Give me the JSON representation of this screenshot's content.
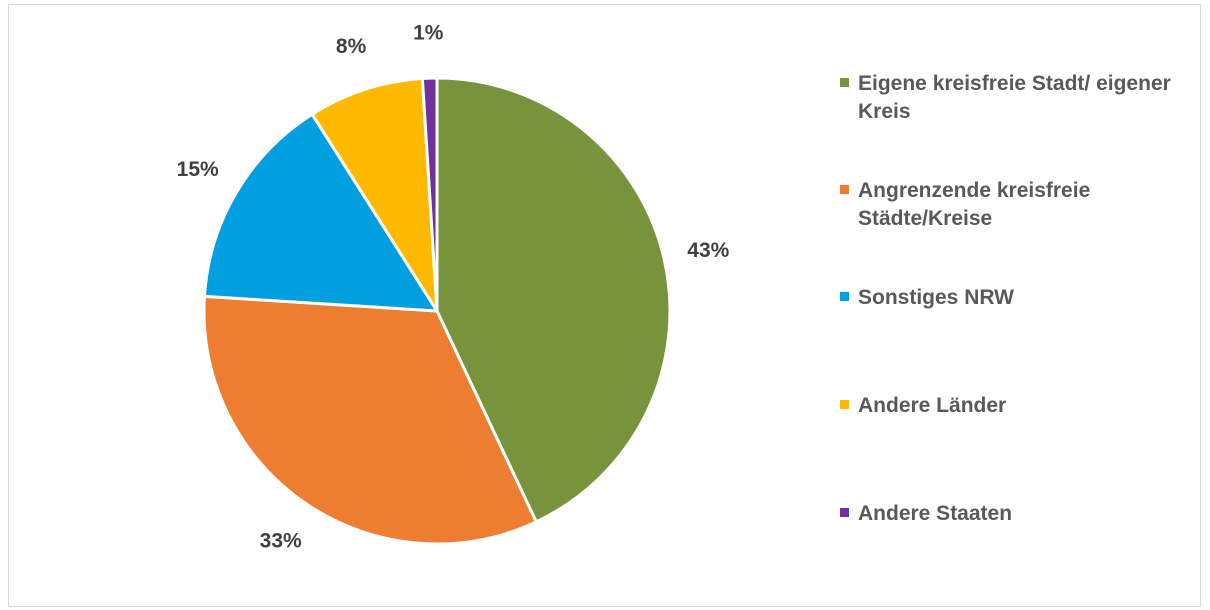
{
  "chart_data": {
    "type": "pie",
    "title": "",
    "start_angle_deg": 0,
    "direction": "clockwise",
    "legend_position": "right",
    "slices": [
      {
        "label": "Eigene kreisfreie Stadt/ eigener Kreis",
        "value": 43,
        "value_label": "43%",
        "color": "#77933c"
      },
      {
        "label": "Angrenzende kreisfreie Städte/Kreise",
        "value": 33,
        "value_label": "33%",
        "color": "#ed7d31"
      },
      {
        "label": "Sonstiges NRW",
        "value": 15,
        "value_label": "15%",
        "color": "#00a0e0"
      },
      {
        "label": "Andere Länder",
        "value": 8,
        "value_label": "8%",
        "color": "#ffb900"
      },
      {
        "label": "Andere Staaten",
        "value": 1,
        "value_label": "1%",
        "color": "#7030a0"
      }
    ]
  }
}
